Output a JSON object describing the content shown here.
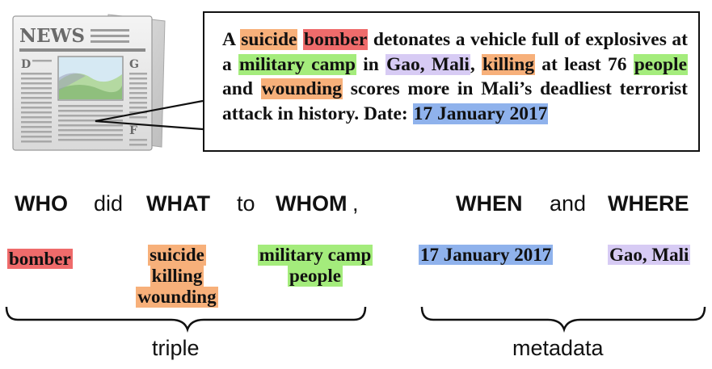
{
  "newspaper_icon": {
    "masthead": "NEWS",
    "column_letters": [
      "D",
      "G",
      "F"
    ]
  },
  "article": {
    "segments": [
      {
        "text": "A ",
        "hl": ""
      },
      {
        "text": "suicide",
        "hl": "orange"
      },
      {
        "text": " ",
        "hl": ""
      },
      {
        "text": "bomber",
        "hl": "red"
      },
      {
        "text": " detonates a vehicle full of explosives at a ",
        "hl": ""
      },
      {
        "text": "military camp",
        "hl": "green"
      },
      {
        "text": " in ",
        "hl": ""
      },
      {
        "text": "Gao, Mali",
        "hl": "purple"
      },
      {
        "text": ", ",
        "hl": ""
      },
      {
        "text": "killing",
        "hl": "orange"
      },
      {
        "text": " at least 76 ",
        "hl": ""
      },
      {
        "text": "people",
        "hl": "green"
      },
      {
        "text": " and ",
        "hl": ""
      },
      {
        "text": "wounding",
        "hl": "orange"
      },
      {
        "text": " scores more in Mali’s deadliest terrorist attack in history. Date: ",
        "hl": ""
      },
      {
        "text": "17 January 2017",
        "hl": "blue"
      }
    ]
  },
  "question": {
    "who": "WHO",
    "did": "did",
    "what": "WHAT",
    "to": "to",
    "whom": "WHOM",
    "comma": ",",
    "when": "WHEN",
    "and": "and",
    "where": "WHERE"
  },
  "terms": {
    "who": "bomber",
    "what": [
      "suicide",
      "killing",
      "wounding"
    ],
    "whom": [
      "military camp",
      "people"
    ],
    "when": "17 January 2017",
    "where": "Gao, Mali"
  },
  "groups": {
    "triple": "triple",
    "metadata": "metadata"
  },
  "colors": {
    "red": "#ef6b6b",
    "orange": "#f7b07a",
    "green": "#a4ec7c",
    "purple": "#d7cbf4",
    "blue": "#8fb2ec"
  }
}
